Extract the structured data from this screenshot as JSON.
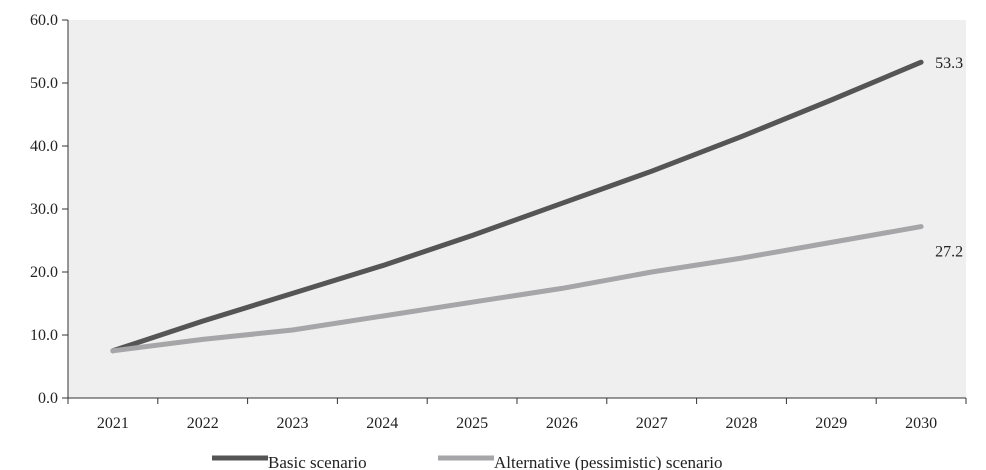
{
  "chart_data": {
    "type": "line",
    "title": "",
    "xlabel": "",
    "ylabel": "",
    "x": [
      "2021",
      "2022",
      "2023",
      "2024",
      "2025",
      "2026",
      "2027",
      "2028",
      "2029",
      "2030"
    ],
    "ylim": [
      0,
      60
    ],
    "yticks": [
      "0.0",
      "10.0",
      "20.0",
      "30.0",
      "40.0",
      "50.0",
      "60.0"
    ],
    "grid": false,
    "legend_position": "bottom",
    "series": [
      {
        "name": "Basic scenario",
        "color": "#555555",
        "values": [
          7.5,
          12.2,
          16.6,
          21.0,
          25.8,
          30.9,
          36.0,
          41.5,
          47.3,
          53.3
        ],
        "end_label": "53.3"
      },
      {
        "name": "Alternative (pessimistic) scenario",
        "color": "#a6a6a8",
        "values": [
          7.5,
          9.3,
          10.8,
          13.0,
          15.2,
          17.4,
          20.0,
          22.2,
          24.7,
          27.2
        ],
        "end_label": "27.2"
      }
    ]
  }
}
